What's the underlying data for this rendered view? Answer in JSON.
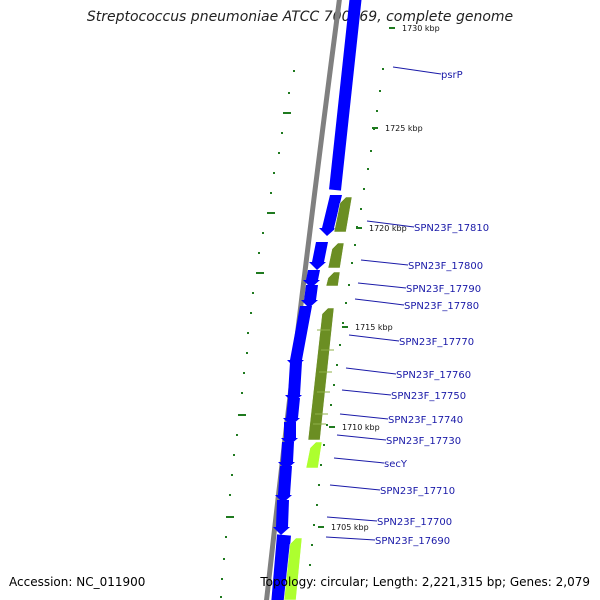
{
  "title": "Streptococcus pneumoniae ATCC 700669, complete genome",
  "accession": "Accession: NC_011900",
  "topology": "Topology: circular; Length: 2,221,315 bp; Genes: 2,079",
  "colors": {
    "forward_cds": "#0000ff",
    "reverse_cds_dark": "#6b8e23",
    "reverse_cds_light": "#adff2f",
    "backbone": "#808080",
    "label": "#1a1aa8",
    "tick_mark": "#1f7a1f"
  },
  "kbp_markers": [
    {
      "id": "kbp-1730",
      "label": "1730 kbp"
    },
    {
      "id": "kbp-1725",
      "label": "1725 kbp"
    },
    {
      "id": "kbp-1720",
      "label": "1720 kbp"
    },
    {
      "id": "kbp-1715",
      "label": "1715 kbp"
    },
    {
      "id": "kbp-1710",
      "label": "1710 kbp"
    },
    {
      "id": "kbp-1705",
      "label": "1705 kbp"
    }
  ],
  "gene_labels": [
    {
      "id": "psrp",
      "label": "psrP"
    },
    {
      "id": "17810",
      "label": "SPN23F_17810"
    },
    {
      "id": "17800",
      "label": "SPN23F_17800"
    },
    {
      "id": "17790",
      "label": "SPN23F_17790"
    },
    {
      "id": "17780",
      "label": "SPN23F_17780"
    },
    {
      "id": "17770",
      "label": "SPN23F_17770"
    },
    {
      "id": "17760",
      "label": "SPN23F_17760"
    },
    {
      "id": "17750",
      "label": "SPN23F_17750"
    },
    {
      "id": "17740",
      "label": "SPN23F_17740"
    },
    {
      "id": "17730",
      "label": "SPN23F_17730"
    },
    {
      "id": "secy",
      "label": "secY"
    },
    {
      "id": "17710",
      "label": "SPN23F_17710"
    },
    {
      "id": "17700",
      "label": "SPN23F_17700"
    },
    {
      "id": "17690",
      "label": "SPN23F_17690"
    }
  ]
}
